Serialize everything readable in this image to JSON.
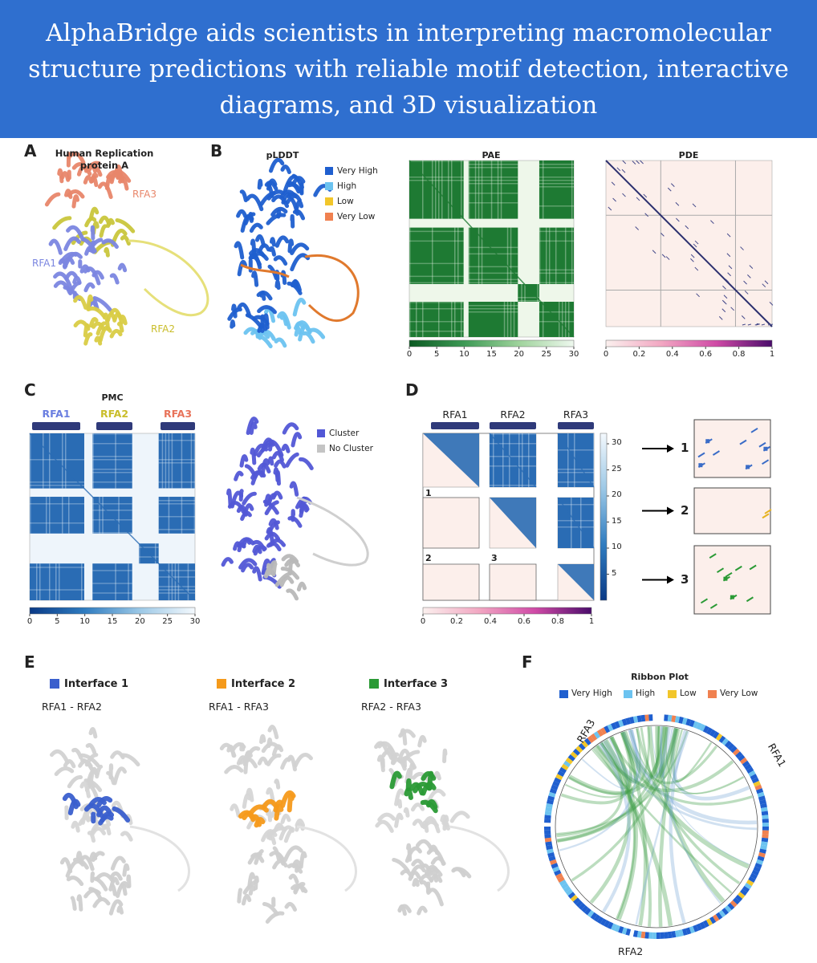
{
  "header": {
    "title": "AlphaBridge aids scientists in interpreting macromolecular structure predictions with reliable motif detection, interactive diagrams, and 3D visualization"
  },
  "panel_a": {
    "letter": "A",
    "title": "Human Replication protein A",
    "chains": [
      "RFA3",
      "RFA1",
      "RFA2"
    ]
  },
  "panel_b": {
    "letter": "B",
    "plddt_title": "pLDDT",
    "legend": [
      {
        "label": "Very High",
        "color": "#1f5fcf"
      },
      {
        "label": "High",
        "color": "#6cc3f0"
      },
      {
        "label": "Low",
        "color": "#f2c62a"
      },
      {
        "label": "Very Low",
        "color": "#f08150"
      }
    ],
    "pae_title": "PAE",
    "pae_ticks": [
      0,
      5,
      10,
      15,
      20,
      25,
      30
    ],
    "pde_title": "PDE",
    "pde_ticks": [
      0,
      0.2,
      0.4,
      0.6,
      0.8,
      1
    ]
  },
  "panel_c": {
    "letter": "C",
    "title": "PMC",
    "chains": [
      "RFA1",
      "RFA2",
      "RFA3"
    ],
    "ticks": [
      0,
      5,
      10,
      15,
      20,
      25,
      30
    ],
    "legend": [
      {
        "label": "Cluster",
        "color": "#5257d6"
      },
      {
        "label": "No Cluster",
        "color": "#c4c4c4"
      }
    ]
  },
  "panel_d": {
    "letter": "D",
    "chains": [
      "RFA1",
      "RFA2",
      "RFA3"
    ],
    "colorbar_ticks": [
      30,
      25,
      20,
      15,
      10,
      5
    ],
    "pde_ticks": [
      0,
      0.2,
      0.4,
      0.6,
      0.8,
      1
    ],
    "blocks": [
      "1",
      "2",
      "3"
    ],
    "zooms": [
      "1",
      "2",
      "3"
    ]
  },
  "panel_e": {
    "letter": "E",
    "interfaces": [
      {
        "name": "Interface 1",
        "pair": "RFA1 - RFA2",
        "color": "#3a5fcd"
      },
      {
        "name": "Interface 2",
        "pair": "RFA1 - RFA3",
        "color": "#f59a1b"
      },
      {
        "name": "Interface 3",
        "pair": "RFA2 - RFA3",
        "color": "#2a9a35"
      }
    ]
  },
  "panel_f": {
    "letter": "F",
    "title": "Ribbon Plot",
    "legend": [
      {
        "label": "Very High",
        "color": "#1f5fcf"
      },
      {
        "label": "High",
        "color": "#6cc3f0"
      },
      {
        "label": "Low",
        "color": "#f2c62a"
      },
      {
        "label": "Very Low",
        "color": "#f08150"
      }
    ],
    "chains": [
      "RFA3",
      "RFA1",
      "RFA2"
    ]
  }
}
